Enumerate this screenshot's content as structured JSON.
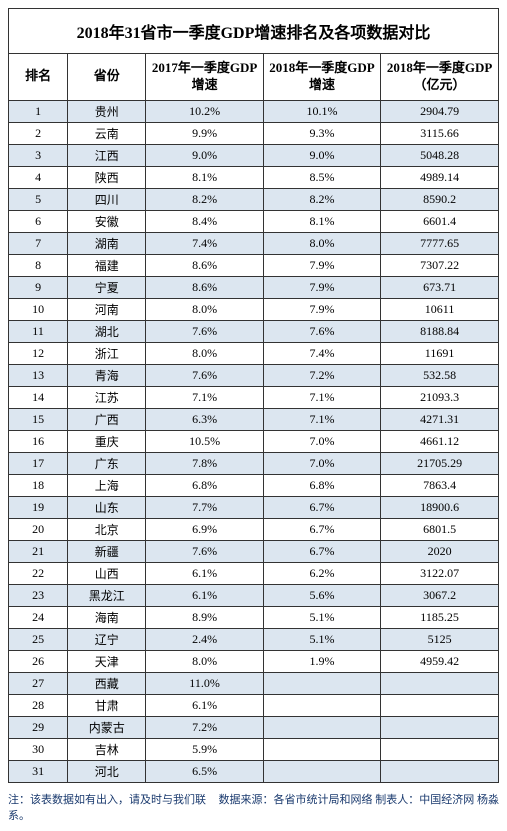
{
  "title": "2018年31省市一季度GDP增速排名及各项数据对比",
  "colors": {
    "row_even_bg": "#dce6f0",
    "row_odd_bg": "#ffffff",
    "border": "#333333",
    "footer_text": "#1a3a6e"
  },
  "columns": [
    "排名",
    "省份",
    "2017年一季度GDP增速",
    "2018年一季度GDP增速",
    "2018年一季度GDP（亿元）"
  ],
  "rows": [
    [
      "1",
      "贵州",
      "10.2%",
      "10.1%",
      "2904.79"
    ],
    [
      "2",
      "云南",
      "9.9%",
      "9.3%",
      "3115.66"
    ],
    [
      "3",
      "江西",
      "9.0%",
      "9.0%",
      "5048.28"
    ],
    [
      "4",
      "陕西",
      "8.1%",
      "8.5%",
      "4989.14"
    ],
    [
      "5",
      "四川",
      "8.2%",
      "8.2%",
      "8590.2"
    ],
    [
      "6",
      "安徽",
      "8.4%",
      "8.1%",
      "6601.4"
    ],
    [
      "7",
      "湖南",
      "7.4%",
      "8.0%",
      "7777.65"
    ],
    [
      "8",
      "福建",
      "8.6%",
      "7.9%",
      "7307.22"
    ],
    [
      "9",
      "宁夏",
      "8.6%",
      "7.9%",
      "673.71"
    ],
    [
      "10",
      "河南",
      "8.0%",
      "7.9%",
      "10611"
    ],
    [
      "11",
      "湖北",
      "7.6%",
      "7.6%",
      "8188.84"
    ],
    [
      "12",
      "浙江",
      "8.0%",
      "7.4%",
      "11691"
    ],
    [
      "13",
      "青海",
      "7.6%",
      "7.2%",
      "532.58"
    ],
    [
      "14",
      "江苏",
      "7.1%",
      "7.1%",
      "21093.3"
    ],
    [
      "15",
      "广西",
      "6.3%",
      "7.1%",
      "4271.31"
    ],
    [
      "16",
      "重庆",
      "10.5%",
      "7.0%",
      "4661.12"
    ],
    [
      "17",
      "广东",
      "7.8%",
      "7.0%",
      "21705.29"
    ],
    [
      "18",
      "上海",
      "6.8%",
      "6.8%",
      "7863.4"
    ],
    [
      "19",
      "山东",
      "7.7%",
      "6.7%",
      "18900.6"
    ],
    [
      "20",
      "北京",
      "6.9%",
      "6.7%",
      "6801.5"
    ],
    [
      "21",
      "新疆",
      "7.6%",
      "6.7%",
      "2020"
    ],
    [
      "22",
      "山西",
      "6.1%",
      "6.2%",
      "3122.07"
    ],
    [
      "23",
      "黑龙江",
      "6.1%",
      "5.6%",
      "3067.2"
    ],
    [
      "24",
      "海南",
      "8.9%",
      "5.1%",
      "1185.25"
    ],
    [
      "25",
      "辽宁",
      "2.4%",
      "5.1%",
      "5125"
    ],
    [
      "26",
      "天津",
      "8.0%",
      "1.9%",
      "4959.42"
    ],
    [
      "27",
      "西藏",
      "11.0%",
      "",
      ""
    ],
    [
      "28",
      "甘肃",
      "6.1%",
      "",
      ""
    ],
    [
      "29",
      "内蒙古",
      "7.2%",
      "",
      ""
    ],
    [
      "30",
      "吉林",
      "5.9%",
      "",
      ""
    ],
    [
      "31",
      "河北",
      "6.5%",
      "",
      ""
    ]
  ],
  "footer": {
    "note": "注：该表数据如有出入，请及时与我们联系。",
    "source": "数据来源：各省市统计局和网络 制表人：中国经济网 杨淼"
  }
}
